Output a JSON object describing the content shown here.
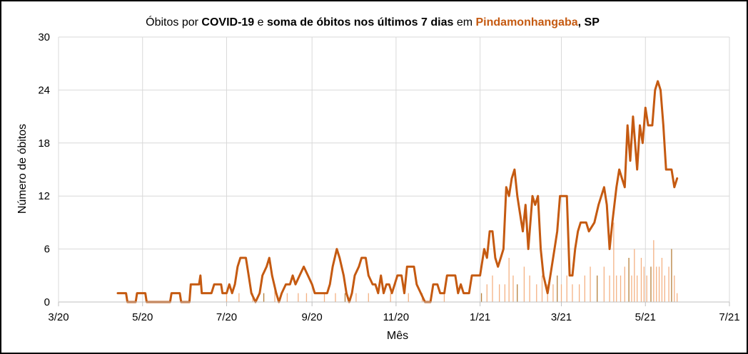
{
  "chart_data": {
    "type": "line",
    "title_parts": [
      {
        "text": "Óbitos por ",
        "bold": false,
        "color": "#000000"
      },
      {
        "text": "COVID-19",
        "bold": true,
        "color": "#000000"
      },
      {
        "text": " e ",
        "bold": false,
        "color": "#000000"
      },
      {
        "text": "soma de óbitos nos últimos 7 dias",
        "bold": true,
        "color": "#000000"
      },
      {
        "text": " em ",
        "bold": false,
        "color": "#000000"
      },
      {
        "text": "Pindamonhangaba",
        "bold": true,
        "color": "#c55a11"
      },
      {
        "text": ", SP",
        "bold": true,
        "color": "#000000"
      }
    ],
    "xlabel": "Mês",
    "ylabel": "Número de óbitos",
    "xlim": [
      "2020-03-01",
      "2021-07-01"
    ],
    "ylim": [
      0,
      30
    ],
    "x_ticks": [
      {
        "date": "2020-03-01",
        "label": "3/20"
      },
      {
        "date": "2020-05-01",
        "label": "5/20"
      },
      {
        "date": "2020-07-01",
        "label": "7/20"
      },
      {
        "date": "2020-09-01",
        "label": "9/20"
      },
      {
        "date": "2020-11-01",
        "label": "11/20"
      },
      {
        "date": "2021-01-01",
        "label": "1/21"
      },
      {
        "date": "2021-03-01",
        "label": "3/21"
      },
      {
        "date": "2021-05-01",
        "label": "5/21"
      },
      {
        "date": "2021-07-01",
        "label": "7/21"
      }
    ],
    "y_ticks": [
      0,
      6,
      12,
      18,
      24,
      30
    ],
    "grid": true,
    "series": [
      {
        "kind": "line",
        "color": "#c55a11",
        "points": [
          [
            "2020-04-13",
            1
          ],
          [
            "2020-04-19",
            1
          ],
          [
            "2020-04-20",
            0
          ],
          [
            "2020-04-26",
            0
          ],
          [
            "2020-04-27",
            1
          ],
          [
            "2020-05-03",
            1
          ],
          [
            "2020-05-04",
            0
          ],
          [
            "2020-05-21",
            0
          ],
          [
            "2020-05-22",
            1
          ],
          [
            "2020-05-28",
            1
          ],
          [
            "2020-05-29",
            0
          ],
          [
            "2020-06-04",
            0
          ],
          [
            "2020-06-05",
            2
          ],
          [
            "2020-06-11",
            2
          ],
          [
            "2020-06-12",
            3
          ],
          [
            "2020-06-13",
            1
          ],
          [
            "2020-06-20",
            1
          ],
          [
            "2020-06-22",
            2
          ],
          [
            "2020-06-27",
            2
          ],
          [
            "2020-06-28",
            1
          ],
          [
            "2020-07-01",
            1
          ],
          [
            "2020-07-03",
            2
          ],
          [
            "2020-07-05",
            1
          ],
          [
            "2020-07-07",
            2
          ],
          [
            "2020-07-09",
            4
          ],
          [
            "2020-07-11",
            5
          ],
          [
            "2020-07-15",
            5
          ],
          [
            "2020-07-17",
            3
          ],
          [
            "2020-07-19",
            1
          ],
          [
            "2020-07-22",
            0
          ],
          [
            "2020-07-25",
            1
          ],
          [
            "2020-07-27",
            3
          ],
          [
            "2020-07-30",
            4
          ],
          [
            "2020-08-01",
            5
          ],
          [
            "2020-08-03",
            3
          ],
          [
            "2020-08-06",
            1
          ],
          [
            "2020-08-08",
            0
          ],
          [
            "2020-08-10",
            1
          ],
          [
            "2020-08-13",
            2
          ],
          [
            "2020-08-16",
            2
          ],
          [
            "2020-08-18",
            3
          ],
          [
            "2020-08-20",
            2
          ],
          [
            "2020-08-23",
            3
          ],
          [
            "2020-08-26",
            4
          ],
          [
            "2020-08-29",
            3
          ],
          [
            "2020-09-01",
            2
          ],
          [
            "2020-09-03",
            1
          ],
          [
            "2020-09-12",
            1
          ],
          [
            "2020-09-14",
            2
          ],
          [
            "2020-09-16",
            4
          ],
          [
            "2020-09-19",
            6
          ],
          [
            "2020-09-21",
            5
          ],
          [
            "2020-09-24",
            3
          ],
          [
            "2020-09-26",
            1
          ],
          [
            "2020-09-28",
            0
          ],
          [
            "2020-09-30",
            1
          ],
          [
            "2020-10-02",
            3
          ],
          [
            "2020-10-05",
            4
          ],
          [
            "2020-10-07",
            5
          ],
          [
            "2020-10-10",
            5
          ],
          [
            "2020-10-12",
            3
          ],
          [
            "2020-10-15",
            2
          ],
          [
            "2020-10-17",
            2
          ],
          [
            "2020-10-19",
            1
          ],
          [
            "2020-10-21",
            3
          ],
          [
            "2020-10-23",
            1
          ],
          [
            "2020-10-25",
            2
          ],
          [
            "2020-10-27",
            2
          ],
          [
            "2020-10-29",
            1
          ],
          [
            "2020-10-31",
            2
          ],
          [
            "2020-11-02",
            3
          ],
          [
            "2020-11-05",
            3
          ],
          [
            "2020-11-07",
            1
          ],
          [
            "2020-11-09",
            4
          ],
          [
            "2020-11-14",
            4
          ],
          [
            "2020-11-16",
            2
          ],
          [
            "2020-11-19",
            1
          ],
          [
            "2020-11-22",
            0
          ],
          [
            "2020-11-26",
            0
          ],
          [
            "2020-11-28",
            2
          ],
          [
            "2020-12-01",
            2
          ],
          [
            "2020-12-03",
            1
          ],
          [
            "2020-12-06",
            1
          ],
          [
            "2020-12-08",
            3
          ],
          [
            "2020-12-14",
            3
          ],
          [
            "2020-12-16",
            1
          ],
          [
            "2020-12-18",
            2
          ],
          [
            "2020-12-20",
            1
          ],
          [
            "2020-12-24",
            1
          ],
          [
            "2020-12-26",
            3
          ],
          [
            "2021-01-01",
            3
          ],
          [
            "2021-01-04",
            6
          ],
          [
            "2021-01-06",
            5
          ],
          [
            "2021-01-08",
            8
          ],
          [
            "2021-01-10",
            8
          ],
          [
            "2021-01-12",
            5
          ],
          [
            "2021-01-14",
            4
          ],
          [
            "2021-01-16",
            5
          ],
          [
            "2021-01-18",
            6
          ],
          [
            "2021-01-20",
            13
          ],
          [
            "2021-01-22",
            12
          ],
          [
            "2021-01-24",
            14
          ],
          [
            "2021-01-26",
            15
          ],
          [
            "2021-01-28",
            12
          ],
          [
            "2021-01-30",
            10
          ],
          [
            "2021-02-01",
            8
          ],
          [
            "2021-02-03",
            11
          ],
          [
            "2021-02-05",
            6
          ],
          [
            "2021-02-08",
            12
          ],
          [
            "2021-02-10",
            11
          ],
          [
            "2021-02-12",
            12
          ],
          [
            "2021-02-14",
            6
          ],
          [
            "2021-02-16",
            3
          ],
          [
            "2021-02-19",
            1
          ],
          [
            "2021-02-21",
            3
          ],
          [
            "2021-02-24",
            6
          ],
          [
            "2021-02-26",
            8
          ],
          [
            "2021-02-28",
            12
          ],
          [
            "2021-03-05",
            12
          ],
          [
            "2021-03-07",
            3
          ],
          [
            "2021-03-09",
            3
          ],
          [
            "2021-03-11",
            6
          ],
          [
            "2021-03-13",
            8
          ],
          [
            "2021-03-15",
            9
          ],
          [
            "2021-03-19",
            9
          ],
          [
            "2021-03-21",
            8
          ],
          [
            "2021-03-25",
            9
          ],
          [
            "2021-03-28",
            11
          ],
          [
            "2021-04-01",
            13
          ],
          [
            "2021-04-03",
            11
          ],
          [
            "2021-04-05",
            6
          ],
          [
            "2021-04-07",
            9
          ],
          [
            "2021-04-10",
            13
          ],
          [
            "2021-04-12",
            15
          ],
          [
            "2021-04-14",
            14
          ],
          [
            "2021-04-16",
            13
          ],
          [
            "2021-04-18",
            20
          ],
          [
            "2021-04-20",
            16
          ],
          [
            "2021-04-22",
            21
          ],
          [
            "2021-04-25",
            15
          ],
          [
            "2021-04-27",
            20
          ],
          [
            "2021-04-29",
            18
          ],
          [
            "2021-05-01",
            22
          ],
          [
            "2021-05-03",
            20
          ],
          [
            "2021-05-06",
            20
          ],
          [
            "2021-05-08",
            24
          ],
          [
            "2021-05-10",
            25
          ],
          [
            "2021-05-12",
            24
          ],
          [
            "2021-05-14",
            20
          ],
          [
            "2021-05-16",
            15
          ],
          [
            "2021-05-20",
            15
          ],
          [
            "2021-05-22",
            13
          ],
          [
            "2021-05-24",
            14
          ]
        ]
      },
      {
        "kind": "bar",
        "color": "#f4b183",
        "highlight_color": "#b57f3a",
        "points": [
          [
            "2020-07-01",
            1
          ],
          [
            "2020-07-10",
            1
          ],
          [
            "2020-07-20",
            1
          ],
          [
            "2020-07-28",
            1
          ],
          [
            "2020-08-05",
            2
          ],
          [
            "2020-08-14",
            1
          ],
          [
            "2020-08-22",
            1
          ],
          [
            "2020-08-28",
            1
          ],
          [
            "2020-09-10",
            1
          ],
          [
            "2020-09-18",
            1
          ],
          [
            "2020-09-25",
            1
          ],
          [
            "2020-10-03",
            1
          ],
          [
            "2020-10-12",
            1
          ],
          [
            "2020-10-28",
            1
          ],
          [
            "2020-11-10",
            1
          ],
          [
            "2020-11-20",
            1
          ],
          [
            "2020-12-06",
            1
          ],
          [
            "2021-01-02",
            1
          ],
          [
            "2021-01-06",
            2
          ],
          [
            "2021-01-10",
            3
          ],
          [
            "2021-01-15",
            2
          ],
          [
            "2021-01-19",
            2
          ],
          [
            "2021-01-22",
            5
          ],
          [
            "2021-01-25",
            3
          ],
          [
            "2021-01-28",
            2
          ],
          [
            "2021-02-02",
            4
          ],
          [
            "2021-02-06",
            3
          ],
          [
            "2021-02-11",
            2
          ],
          [
            "2021-02-15",
            3
          ],
          [
            "2021-02-19",
            2
          ],
          [
            "2021-02-23",
            2
          ],
          [
            "2021-02-26",
            3
          ],
          [
            "2021-03-01",
            2
          ],
          [
            "2021-03-05",
            3
          ],
          [
            "2021-03-09",
            2
          ],
          [
            "2021-03-14",
            2
          ],
          [
            "2021-03-18",
            3
          ],
          [
            "2021-03-22",
            4
          ],
          [
            "2021-03-27",
            3
          ],
          [
            "2021-04-01",
            4
          ],
          [
            "2021-04-05",
            3
          ],
          [
            "2021-04-08",
            9
          ],
          [
            "2021-04-10",
            3
          ],
          [
            "2021-04-13",
            3
          ],
          [
            "2021-04-16",
            4
          ],
          [
            "2021-04-19",
            5
          ],
          [
            "2021-04-21",
            3
          ],
          [
            "2021-04-23",
            6
          ],
          [
            "2021-04-25",
            3
          ],
          [
            "2021-04-28",
            5
          ],
          [
            "2021-04-30",
            4
          ],
          [
            "2021-05-02",
            3
          ],
          [
            "2021-05-05",
            4
          ],
          [
            "2021-05-07",
            7
          ],
          [
            "2021-05-09",
            4
          ],
          [
            "2021-05-11",
            4
          ],
          [
            "2021-05-13",
            5
          ],
          [
            "2021-05-15",
            3
          ],
          [
            "2021-05-18",
            4
          ],
          [
            "2021-05-20",
            6
          ],
          [
            "2021-05-22",
            3
          ],
          [
            "2021-05-24",
            1
          ]
        ]
      }
    ]
  }
}
